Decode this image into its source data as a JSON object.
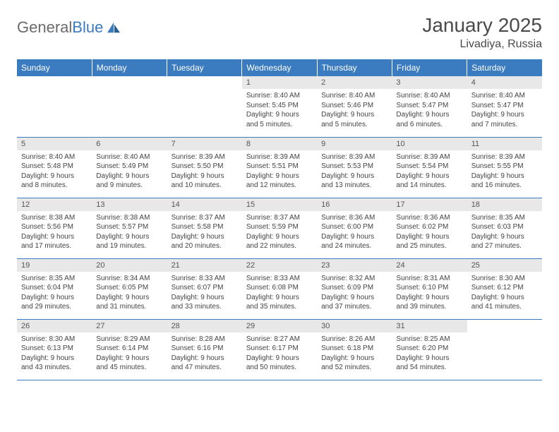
{
  "logo": {
    "text1": "General",
    "text2": "Blue"
  },
  "title": "January 2025",
  "subtitle": "Livadiya, Russia",
  "colors": {
    "header_bg": "#3b7bbf",
    "header_text": "#ffffff",
    "daynum_bg": "#e8e8e8",
    "text": "#444444",
    "row_border": "#3b7bbf"
  },
  "weekdays": [
    "Sunday",
    "Monday",
    "Tuesday",
    "Wednesday",
    "Thursday",
    "Friday",
    "Saturday"
  ],
  "first_weekday_index": 3,
  "days": [
    {
      "n": 1,
      "sunrise": "8:40 AM",
      "sunset": "5:45 PM",
      "daylight": "9 hours and 5 minutes."
    },
    {
      "n": 2,
      "sunrise": "8:40 AM",
      "sunset": "5:46 PM",
      "daylight": "9 hours and 5 minutes."
    },
    {
      "n": 3,
      "sunrise": "8:40 AM",
      "sunset": "5:47 PM",
      "daylight": "9 hours and 6 minutes."
    },
    {
      "n": 4,
      "sunrise": "8:40 AM",
      "sunset": "5:47 PM",
      "daylight": "9 hours and 7 minutes."
    },
    {
      "n": 5,
      "sunrise": "8:40 AM",
      "sunset": "5:48 PM",
      "daylight": "9 hours and 8 minutes."
    },
    {
      "n": 6,
      "sunrise": "8:40 AM",
      "sunset": "5:49 PM",
      "daylight": "9 hours and 9 minutes."
    },
    {
      "n": 7,
      "sunrise": "8:39 AM",
      "sunset": "5:50 PM",
      "daylight": "9 hours and 10 minutes."
    },
    {
      "n": 8,
      "sunrise": "8:39 AM",
      "sunset": "5:51 PM",
      "daylight": "9 hours and 12 minutes."
    },
    {
      "n": 9,
      "sunrise": "8:39 AM",
      "sunset": "5:53 PM",
      "daylight": "9 hours and 13 minutes."
    },
    {
      "n": 10,
      "sunrise": "8:39 AM",
      "sunset": "5:54 PM",
      "daylight": "9 hours and 14 minutes."
    },
    {
      "n": 11,
      "sunrise": "8:39 AM",
      "sunset": "5:55 PM",
      "daylight": "9 hours and 16 minutes."
    },
    {
      "n": 12,
      "sunrise": "8:38 AM",
      "sunset": "5:56 PM",
      "daylight": "9 hours and 17 minutes."
    },
    {
      "n": 13,
      "sunrise": "8:38 AM",
      "sunset": "5:57 PM",
      "daylight": "9 hours and 19 minutes."
    },
    {
      "n": 14,
      "sunrise": "8:37 AM",
      "sunset": "5:58 PM",
      "daylight": "9 hours and 20 minutes."
    },
    {
      "n": 15,
      "sunrise": "8:37 AM",
      "sunset": "5:59 PM",
      "daylight": "9 hours and 22 minutes."
    },
    {
      "n": 16,
      "sunrise": "8:36 AM",
      "sunset": "6:00 PM",
      "daylight": "9 hours and 24 minutes."
    },
    {
      "n": 17,
      "sunrise": "8:36 AM",
      "sunset": "6:02 PM",
      "daylight": "9 hours and 25 minutes."
    },
    {
      "n": 18,
      "sunrise": "8:35 AM",
      "sunset": "6:03 PM",
      "daylight": "9 hours and 27 minutes."
    },
    {
      "n": 19,
      "sunrise": "8:35 AM",
      "sunset": "6:04 PM",
      "daylight": "9 hours and 29 minutes."
    },
    {
      "n": 20,
      "sunrise": "8:34 AM",
      "sunset": "6:05 PM",
      "daylight": "9 hours and 31 minutes."
    },
    {
      "n": 21,
      "sunrise": "8:33 AM",
      "sunset": "6:07 PM",
      "daylight": "9 hours and 33 minutes."
    },
    {
      "n": 22,
      "sunrise": "8:33 AM",
      "sunset": "6:08 PM",
      "daylight": "9 hours and 35 minutes."
    },
    {
      "n": 23,
      "sunrise": "8:32 AM",
      "sunset": "6:09 PM",
      "daylight": "9 hours and 37 minutes."
    },
    {
      "n": 24,
      "sunrise": "8:31 AM",
      "sunset": "6:10 PM",
      "daylight": "9 hours and 39 minutes."
    },
    {
      "n": 25,
      "sunrise": "8:30 AM",
      "sunset": "6:12 PM",
      "daylight": "9 hours and 41 minutes."
    },
    {
      "n": 26,
      "sunrise": "8:30 AM",
      "sunset": "6:13 PM",
      "daylight": "9 hours and 43 minutes."
    },
    {
      "n": 27,
      "sunrise": "8:29 AM",
      "sunset": "6:14 PM",
      "daylight": "9 hours and 45 minutes."
    },
    {
      "n": 28,
      "sunrise": "8:28 AM",
      "sunset": "6:16 PM",
      "daylight": "9 hours and 47 minutes."
    },
    {
      "n": 29,
      "sunrise": "8:27 AM",
      "sunset": "6:17 PM",
      "daylight": "9 hours and 50 minutes."
    },
    {
      "n": 30,
      "sunrise": "8:26 AM",
      "sunset": "6:18 PM",
      "daylight": "9 hours and 52 minutes."
    },
    {
      "n": 31,
      "sunrise": "8:25 AM",
      "sunset": "6:20 PM",
      "daylight": "9 hours and 54 minutes."
    }
  ]
}
